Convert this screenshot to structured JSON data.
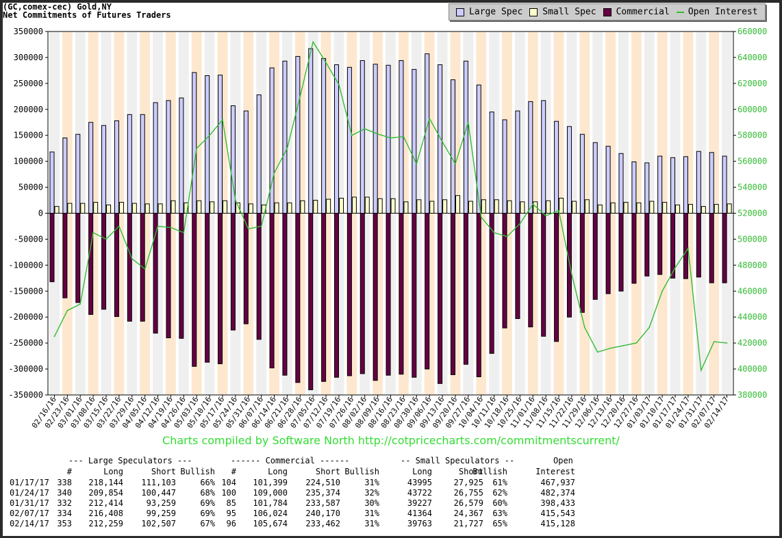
{
  "header": {
    "line1": "(GC,comex-cec) Gold,NY",
    "line2": "Net Commitments of Futures Traders"
  },
  "legend": [
    {
      "label": "Large Spec",
      "color": "#ccccff"
    },
    {
      "label": "Small Spec",
      "color": "#ffffcc"
    },
    {
      "label": "Commercial",
      "color": "#660044"
    },
    {
      "label": "Open Interest",
      "color": "#33bb33"
    }
  ],
  "credit": "Charts compiled by Software North  http://cotpricecharts.com/commitmentscurrent/",
  "chart_data": {
    "type": "bar",
    "categories": [
      "02/16/16",
      "02/23/16",
      "03/01/16",
      "03/08/16",
      "03/15/16",
      "03/22/16",
      "03/29/16",
      "04/05/16",
      "04/12/16",
      "04/19/16",
      "04/26/16",
      "05/03/16",
      "05/10/16",
      "05/17/16",
      "05/24/16",
      "05/31/16",
      "06/07/16",
      "06/14/16",
      "06/21/16",
      "06/28/16",
      "07/05/16",
      "07/12/16",
      "07/19/16",
      "07/26/16",
      "08/02/16",
      "08/09/16",
      "08/16/16",
      "08/23/16",
      "08/30/16",
      "09/06/16",
      "09/13/16",
      "09/20/16",
      "09/27/16",
      "10/04/16",
      "10/11/16",
      "10/18/16",
      "10/25/16",
      "11/01/16",
      "11/08/16",
      "11/15/16",
      "11/22/16",
      "11/29/16",
      "12/06/16",
      "12/13/16",
      "12/20/16",
      "12/27/16",
      "01/03/17",
      "01/10/17",
      "01/17/17",
      "01/24/17",
      "01/31/17",
      "02/07/17",
      "02/14/17"
    ],
    "series": [
      {
        "name": "Large Spec",
        "values": [
          118000,
          145000,
          152000,
          175000,
          169000,
          178000,
          190000,
          190000,
          213000,
          217000,
          222000,
          271000,
          265000,
          266000,
          207000,
          197000,
          228000,
          280000,
          293000,
          302000,
          317000,
          298000,
          286000,
          281000,
          294000,
          287000,
          285000,
          294000,
          277000,
          307000,
          286000,
          257000,
          293000,
          247000,
          195000,
          180000,
          197000,
          215000,
          217000,
          177000,
          167000,
          152000,
          136000,
          129000,
          115000,
          99000,
          97000,
          110000,
          107000,
          109000,
          119000,
          117000,
          110000
        ]
      },
      {
        "name": "Small Spec",
        "values": [
          13000,
          19000,
          19000,
          21000,
          16000,
          21000,
          19000,
          18000,
          18000,
          24000,
          20000,
          24000,
          22000,
          24000,
          20000,
          18000,
          16000,
          20000,
          20000,
          24000,
          25000,
          27000,
          29000,
          31000,
          31000,
          28000,
          28000,
          22000,
          26000,
          23000,
          26000,
          34000,
          23000,
          26000,
          26000,
          24000,
          22000,
          22000,
          24000,
          29000,
          23000,
          26000,
          16000,
          20000,
          21000,
          20000,
          23000,
          21000,
          16000,
          17000,
          13000,
          17000,
          18000
        ]
      },
      {
        "name": "Commercial",
        "values": [
          -132000,
          -163000,
          -172000,
          -195000,
          -185000,
          -199000,
          -208000,
          -208000,
          -231000,
          -240000,
          -241000,
          -295000,
          -287000,
          -290000,
          -225000,
          -213000,
          -243000,
          -298000,
          -312000,
          -326000,
          -340000,
          -324000,
          -316000,
          -313000,
          -309000,
          -322000,
          -312000,
          -310000,
          -316000,
          -300000,
          -328000,
          -311000,
          -291000,
          -315000,
          -270000,
          -221000,
          -203000,
          -219000,
          -237000,
          -247000,
          -200000,
          -191000,
          -166000,
          -155000,
          -150000,
          -135000,
          -121000,
          -118000,
          -125000,
          -126000,
          -123000,
          -134000,
          -134000
        ]
      },
      {
        "name": "Open Interest",
        "axis": "right",
        "values": [
          425000,
          445000,
          450000,
          505000,
          500000,
          510000,
          485000,
          477000,
          510000,
          509000,
          505000,
          570000,
          580000,
          592000,
          530000,
          508000,
          510000,
          551000,
          570000,
          610000,
          652000,
          636000,
          619000,
          580000,
          585000,
          581000,
          578000,
          579000,
          558000,
          593000,
          575000,
          558000,
          590000,
          517000,
          505000,
          502000,
          512000,
          527000,
          518000,
          522000,
          473000,
          432000,
          413000,
          416000,
          418000,
          420000,
          432000,
          460000,
          478000,
          493000,
          399000,
          421000,
          420000
        ]
      }
    ],
    "y_left": {
      "min": -350000,
      "max": 350000,
      "step": 50000
    },
    "y_right": {
      "min": 380000,
      "max": 660000,
      "step": 20000
    },
    "grid": "vertical alternating bands",
    "legend_position": "top-right"
  },
  "table": {
    "group_headers": [
      {
        "text": "--- Large Speculators ---",
        "x": 100
      },
      {
        "text": "------ Commercial ------",
        "x": 337
      },
      {
        "text": "-- Small Speculators --",
        "x": 585
      },
      {
        "text": "Open",
        "x": 808
      }
    ],
    "columns": [
      "",
      "#",
      "Long",
      "Short",
      "Bullish",
      "#",
      "Long",
      "Short",
      "Bullish",
      "Long",
      "Short",
      "Bullish",
      "Interest"
    ],
    "rows": [
      [
        "01/17/17",
        "338",
        "218,144",
        "111,103",
        "66%",
        "104",
        "101,399",
        "224,510",
        "31%",
        "43995",
        "27,925",
        "61%",
        "467,937"
      ],
      [
        "01/24/17",
        "340",
        "209,854",
        "100,447",
        "68%",
        "100",
        "109,000",
        "235,374",
        "32%",
        "43722",
        "26,755",
        "62%",
        "482,374"
      ],
      [
        "01/31/17",
        "332",
        "212,414",
        "93,259",
        "69%",
        "85",
        "101,784",
        "233,587",
        "30%",
        "39227",
        "26,579",
        "60%",
        "398,433"
      ],
      [
        "02/07/17",
        "334",
        "216,408",
        "99,259",
        "69%",
        "95",
        "106,024",
        "240,170",
        "31%",
        "41364",
        "24,367",
        "63%",
        "415,543"
      ],
      [
        "02/14/17",
        "353",
        "212,259",
        "102,507",
        "67%",
        "96",
        "105,674",
        "233,462",
        "31%",
        "39763",
        "21,727",
        "65%",
        "415,128"
      ]
    ]
  }
}
